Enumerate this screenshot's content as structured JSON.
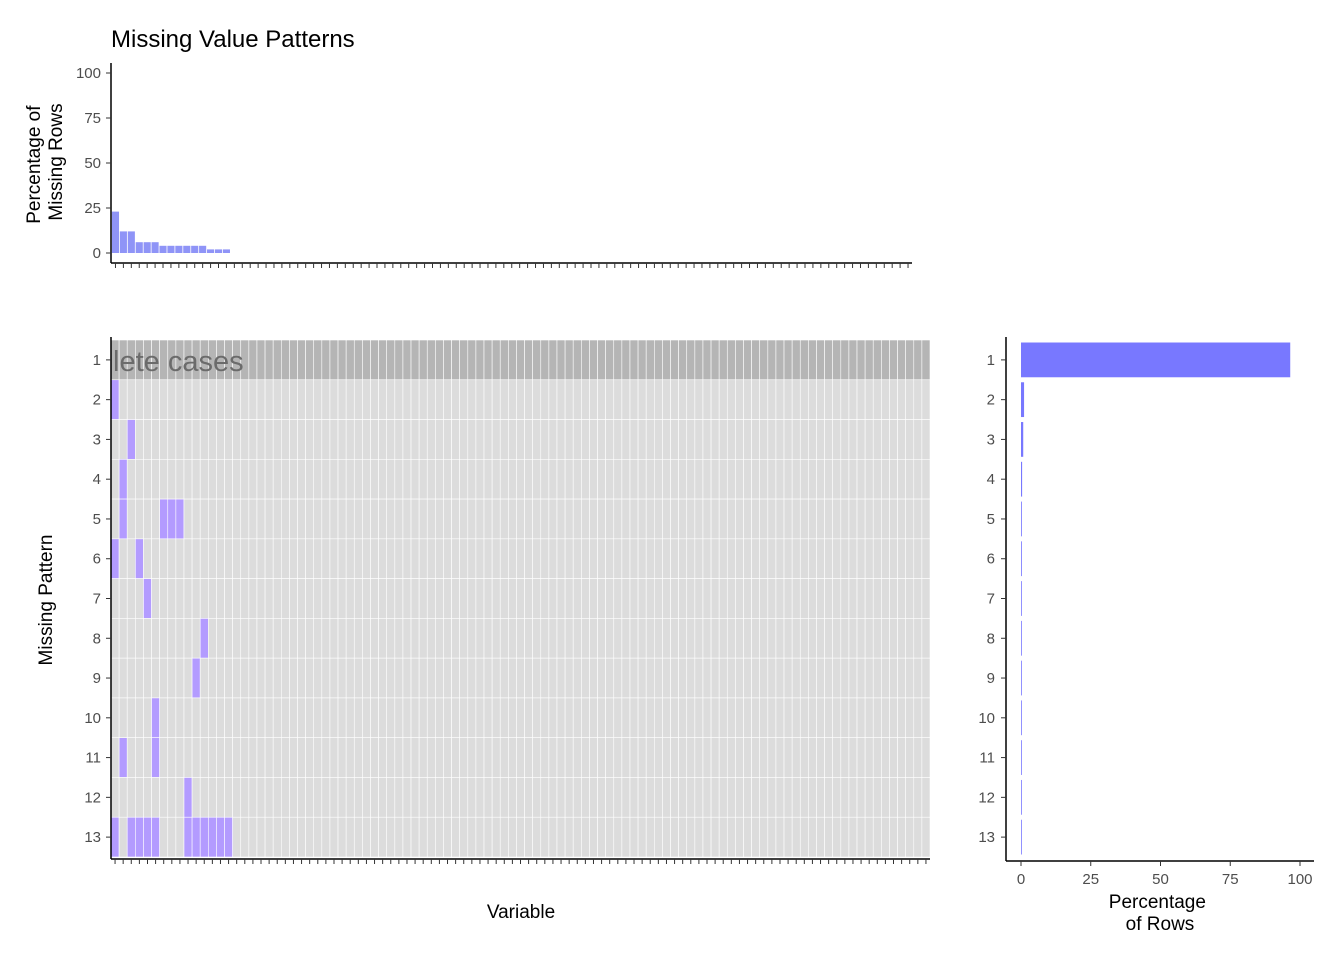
{
  "title": "Missing Value Patterns",
  "colors": {
    "bar_missing": "#8f94f7",
    "bar_pattern": "#7878ff",
    "tile_missing": "#b39bff",
    "tile_present": "#dcdcdc",
    "tile_complete": "#b5b5b5",
    "grid_line": "#ffffff",
    "axis": "#000000",
    "tick_text": "#4d4d4d"
  },
  "complete_cases_label": "lete cases",
  "chart_data": [
    {
      "type": "bar",
      "name": "variable-missingness",
      "title": "Missing Value Patterns",
      "xlabel": "",
      "ylabel": "Percentage of\nMissing Rows",
      "ylabel_lines": [
        "Percentage of",
        "Missing Rows"
      ],
      "ylim": [
        0,
        100
      ],
      "yticks": [
        0,
        25,
        50,
        75,
        100
      ],
      "n_variables": 101,
      "values": [
        23,
        12,
        12,
        6,
        6,
        6,
        4,
        4,
        4,
        4,
        4,
        4,
        2,
        2,
        2
      ],
      "tick_labels_note": "variable names overplotted and illegible"
    },
    {
      "type": "heatmap",
      "name": "missing-patterns-tiles",
      "xlabel": "Variable",
      "ylabel": "Missing Pattern",
      "n_variables": 101,
      "patterns": [
        "1",
        "2",
        "3",
        "4",
        "5",
        "6",
        "7",
        "8",
        "9",
        "10",
        "11",
        "12",
        "13"
      ],
      "complete_pattern": "1",
      "missing_cells": [
        [],
        [
          0
        ],
        [
          2
        ],
        [
          1
        ],
        [
          1,
          6,
          7,
          8
        ],
        [
          0,
          3
        ],
        [
          4
        ],
        [
          11
        ],
        [
          10
        ],
        [
          5
        ],
        [
          1,
          5
        ],
        [
          9
        ],
        [
          0,
          2,
          3,
          4,
          5,
          9,
          10,
          11,
          12,
          13,
          14
        ]
      ]
    },
    {
      "type": "bar",
      "name": "pattern-frequency",
      "orientation": "horizontal",
      "xlabel": "Percentage\nof Rows",
      "xlabel_lines": [
        "Percentage",
        "of Rows"
      ],
      "xlim": [
        0,
        100
      ],
      "xticks": [
        0,
        25,
        50,
        75,
        100
      ],
      "categories": [
        "1",
        "2",
        "3",
        "4",
        "5",
        "6",
        "7",
        "8",
        "9",
        "10",
        "11",
        "12",
        "13"
      ],
      "values": [
        96.5,
        1.1,
        0.8,
        0.4,
        0.3,
        0.3,
        0.2,
        0.1,
        0.1,
        0.1,
        0.1,
        0.1,
        0.1
      ]
    }
  ]
}
